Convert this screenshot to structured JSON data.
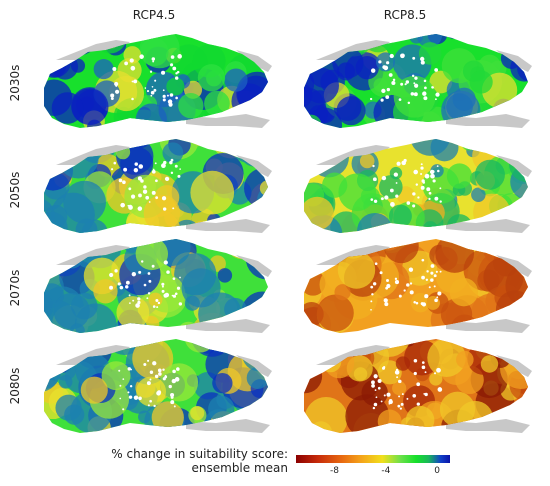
{
  "columns": [
    "RCP4.5",
    "RCP8.5"
  ],
  "rows": [
    "2030s",
    "2050s",
    "2070s",
    "2080s"
  ],
  "legend": {
    "title_line1": "% change in suitability score:",
    "title_line2": "ensemble mean",
    "ticks": [
      "-8",
      "-4",
      "0"
    ],
    "tick_values": [
      -8,
      -4,
      0
    ],
    "range": [
      -11,
      1
    ],
    "colors": [
      "#8b0000",
      "#c62a0a",
      "#e86a10",
      "#f4a21a",
      "#f1df1c",
      "#6be04a",
      "#16e02a",
      "#19b85a",
      "#1040c8",
      "#0a14a8"
    ]
  },
  "panels": [
    {
      "scenario": "RCP4.5",
      "period": "2030s",
      "palette": [
        "#18e02c",
        "#10d830",
        "#2ee040",
        "#0a20c0",
        "#1c60c0",
        "#e6e030"
      ]
    },
    {
      "scenario": "RCP8.5",
      "period": "2030s",
      "palette": [
        "#18e02c",
        "#22d838",
        "#3fe03a",
        "#0a20c0",
        "#1c70b8",
        "#e6e030"
      ]
    },
    {
      "scenario": "RCP4.5",
      "period": "2050s",
      "palette": [
        "#3fe03a",
        "#9ae83a",
        "#e8e22e",
        "#1c80b0",
        "#0a30c0",
        "#f0c828"
      ]
    },
    {
      "scenario": "RCP8.5",
      "period": "2050s",
      "palette": [
        "#e8e22e",
        "#f0c828",
        "#3fe03a",
        "#1c80b0",
        "#18b860",
        "#f2b020"
      ]
    },
    {
      "scenario": "RCP4.5",
      "period": "2070s",
      "palette": [
        "#3fe03a",
        "#9ae83a",
        "#e8e22e",
        "#1c80b0",
        "#0a30c0",
        "#f0c828"
      ]
    },
    {
      "scenario": "RCP8.5",
      "period": "2070s",
      "palette": [
        "#f2a020",
        "#e07418",
        "#c8500e",
        "#f0c828",
        "#f2b020",
        "#b8400c"
      ]
    },
    {
      "scenario": "RCP4.5",
      "period": "2080s",
      "palette": [
        "#3fe03a",
        "#e8e22e",
        "#9ae83a",
        "#1c80b0",
        "#0a30c0",
        "#f0c828"
      ]
    },
    {
      "scenario": "RCP8.5",
      "period": "2080s",
      "palette": [
        "#e07418",
        "#c8500e",
        "#a82808",
        "#f2a020",
        "#8b1a04",
        "#f0c828"
      ]
    }
  ]
}
